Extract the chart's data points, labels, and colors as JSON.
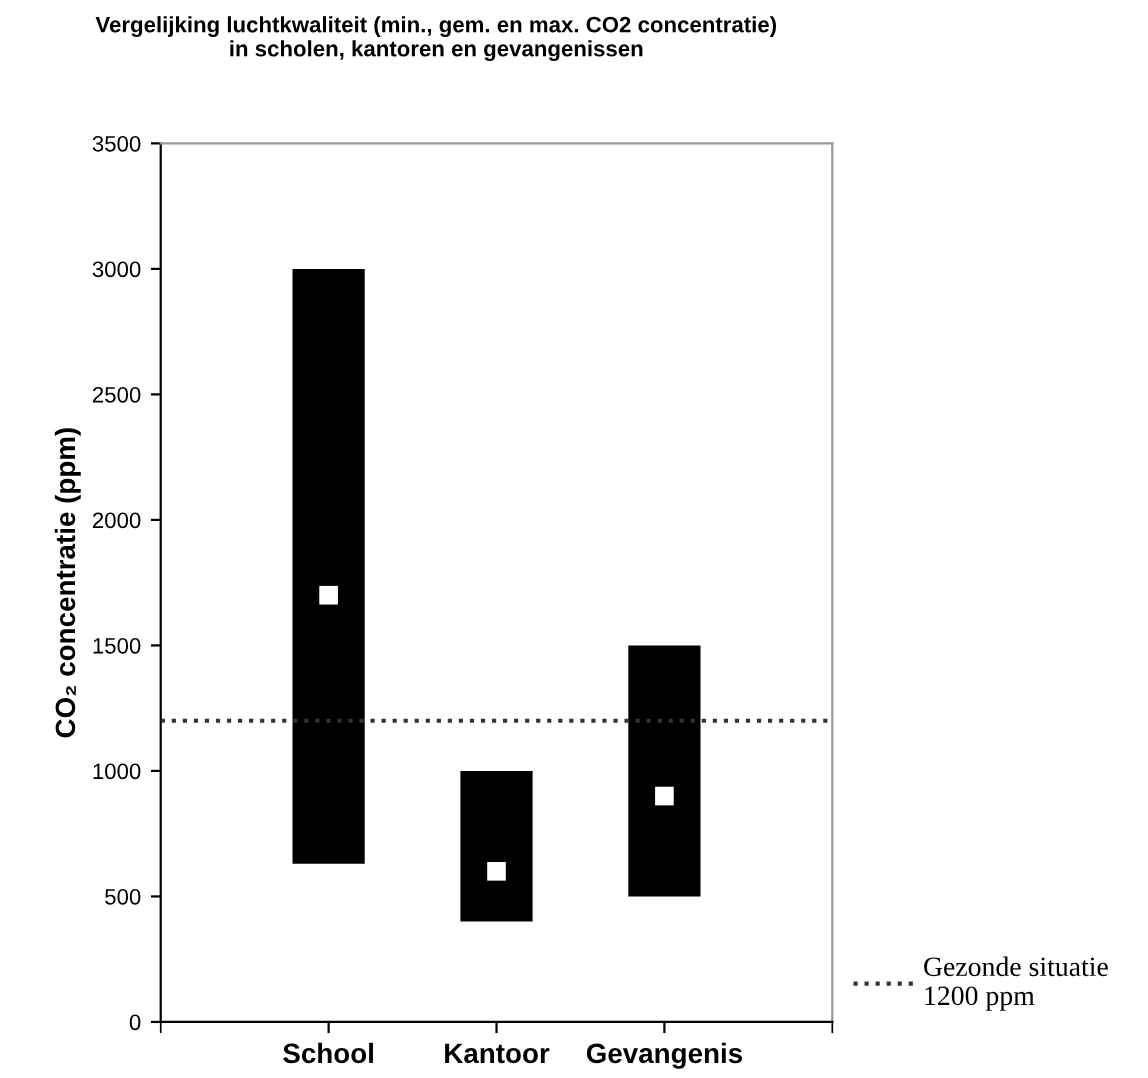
{
  "chart_data": {
    "type": "bar",
    "title": "Vergelijking luchtkwaliteit (min., gem. en max. CO2 concentratie)\nin scholen, kantoren en gevangenissen",
    "ylabel": "CO₂ concentratie (ppm)",
    "categories": [
      "School",
      "Kantoor",
      "Gevangenis"
    ],
    "series": [
      {
        "color": "#000000",
        "values": [
          2370,
          600,
          1000
        ],
        "base": [
          630,
          400,
          500
        ]
      },
      {
        "type": "scatter",
        "color": "#ffffff",
        "x": [
          "School",
          "Kantoor",
          "Gevangenis"
        ],
        "values": [
          1700,
          600,
          900
        ]
      }
    ],
    "ylim": [
      0,
      3500
    ],
    "yticks": [
      0,
      500,
      1000,
      1500,
      2000,
      2500,
      3000,
      3500
    ],
    "ref_lines": [
      {
        "axis": "y",
        "value": 1200,
        "label": "Gezonde situatie\n1200 ppm",
        "color": "#333333",
        "line_style": "dotted"
      }
    ],
    "marker": "square",
    "grid": false,
    "legend": "bottom right"
  }
}
